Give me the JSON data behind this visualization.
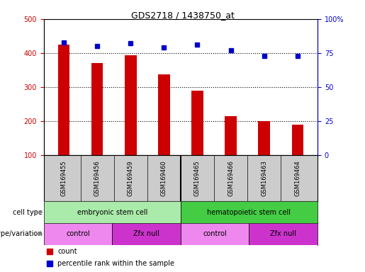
{
  "title": "GDS2718 / 1438750_at",
  "samples": [
    "GSM169455",
    "GSM169456",
    "GSM169459",
    "GSM169460",
    "GSM169465",
    "GSM169466",
    "GSM169463",
    "GSM169464"
  ],
  "counts": [
    425,
    370,
    393,
    338,
    290,
    215,
    200,
    190
  ],
  "percentile_ranks": [
    83,
    80,
    82,
    79,
    81,
    77,
    73,
    73
  ],
  "ylim_left": [
    100,
    500
  ],
  "ylim_right": [
    0,
    100
  ],
  "yticks_left": [
    100,
    200,
    300,
    400,
    500
  ],
  "yticks_right": [
    0,
    25,
    50,
    75,
    100
  ],
  "ytick_labels_right": [
    "0",
    "25",
    "50",
    "75",
    "100%"
  ],
  "bar_color": "#cc0000",
  "dot_color": "#0000cc",
  "cell_type_groups": [
    {
      "label": "embryonic stem cell",
      "start": 0,
      "end": 4,
      "color": "#aaeaaa"
    },
    {
      "label": "hematopoietic stem cell",
      "start": 4,
      "end": 8,
      "color": "#44cc44"
    }
  ],
  "genotype_groups": [
    {
      "label": "control",
      "start": 0,
      "end": 2,
      "color": "#ee88ee"
    },
    {
      "label": "Zfx null",
      "start": 2,
      "end": 4,
      "color": "#cc33cc"
    },
    {
      "label": "control",
      "start": 4,
      "end": 6,
      "color": "#ee88ee"
    },
    {
      "label": "Zfx null",
      "start": 6,
      "end": 8,
      "color": "#cc33cc"
    }
  ],
  "legend_count_color": "#cc0000",
  "legend_dot_color": "#0000cc",
  "background_color": "#ffffff",
  "plot_bg_color": "#ffffff",
  "tick_label_color_left": "#cc0000",
  "tick_label_color_right": "#0000cc",
  "grid_color": "#000000",
  "xlabel_area_bg": "#cccccc"
}
